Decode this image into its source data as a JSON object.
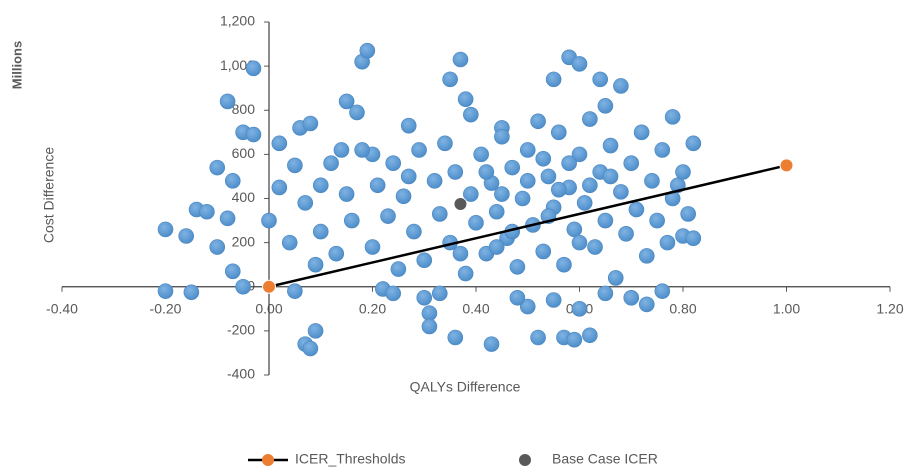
{
  "chart_data": {
    "type": "scatter",
    "xlabel": "QALYs Difference",
    "ylabel": "Cost Difference",
    "yunit": "Millions",
    "xlim": [
      -0.4,
      1.2
    ],
    "xticks": [
      {
        "value": -0.4,
        "label": "-0.40"
      },
      {
        "value": -0.2,
        "label": "-0.20"
      },
      {
        "value": 0,
        "label": "0.00"
      },
      {
        "value": 0.2,
        "label": "0.20"
      },
      {
        "value": 0.4,
        "label": "0.40"
      },
      {
        "value": 0.6,
        "label": "0.60"
      },
      {
        "value": 0.8,
        "label": "0.80"
      },
      {
        "value": 1.0,
        "label": "1.00"
      },
      {
        "value": 1.2,
        "label": "1.20"
      }
    ],
    "ylim": [
      -400,
      1200
    ],
    "yticks": [
      -400,
      -200,
      0,
      200,
      400,
      600,
      800,
      {
        "value": 1000,
        "label": "1,000"
      },
      {
        "value": 1200,
        "label": "1,200"
      }
    ],
    "legend": "bottom",
    "series": [
      {
        "color": "#5b9bd5",
        "x": [
          -0.2,
          -0.15,
          -0.2,
          -0.16,
          -0.14,
          -0.12,
          -0.1,
          -0.1,
          -0.08,
          -0.03,
          -0.05,
          -0.03,
          -0.07,
          -0.08,
          -0.07,
          -0.05,
          0.02,
          0.05,
          0.07,
          0.08,
          0.09,
          0.06,
          0.08,
          0.1,
          0.15,
          0.17,
          0.18,
          0.19,
          0.2,
          0.22,
          0.24,
          0.27,
          0.3,
          0.31,
          0.31,
          0.33,
          0.35,
          0.36,
          0.37,
          0.38,
          0.39,
          0.43,
          0.45,
          0.52,
          0.55,
          0.57,
          0.58,
          0.59,
          0.6,
          0.62,
          0.64,
          0.65,
          0.68,
          0.7,
          0.73,
          0.76,
          0.78,
          0.8,
          0.82,
          0.82,
          0.79,
          0.5,
          0.48,
          0.55,
          0.6,
          0.65,
          0.0,
          0.02,
          0.04,
          0.05,
          0.07,
          0.1,
          0.12,
          0.13,
          0.15,
          0.16,
          0.18,
          0.2,
          0.21,
          0.23,
          0.24,
          0.25,
          0.26,
          0.28,
          0.29,
          0.3,
          0.32,
          0.33,
          0.34,
          0.35,
          0.36,
          0.38,
          0.39,
          0.4,
          0.41,
          0.42,
          0.43,
          0.44,
          0.45,
          0.46,
          0.47,
          0.48,
          0.49,
          0.5,
          0.51,
          0.52,
          0.53,
          0.54,
          0.55,
          0.56,
          0.57,
          0.58,
          0.59,
          0.6,
          0.61,
          0.62,
          0.63,
          0.64,
          0.65,
          0.66,
          0.67,
          0.68,
          0.69,
          0.7,
          0.71,
          0.72,
          0.73,
          0.74,
          0.75,
          0.76,
          0.77,
          0.78,
          0.8,
          0.81,
          0.56,
          0.53,
          0.47,
          0.42,
          0.58,
          0.62,
          0.5,
          0.45,
          0.66,
          0.54,
          0.6,
          0.44,
          0.37,
          0.27,
          0.14,
          0.09
        ],
        "y": [
          -20,
          -25,
          260,
          230,
          350,
          340,
          180,
          540,
          840,
          990,
          700,
          690,
          480,
          310,
          70,
          0,
          650,
          -20,
          -260,
          -280,
          -200,
          720,
          740,
          460,
          840,
          790,
          1020,
          1070,
          600,
          -10,
          -30,
          730,
          -50,
          -120,
          -180,
          -30,
          940,
          -230,
          1030,
          850,
          780,
          -260,
          720,
          -230,
          940,
          -230,
          1040,
          -240,
          1010,
          -220,
          940,
          820,
          910,
          -50,
          -80,
          -20,
          770,
          230,
          650,
          220,
          460,
          -90,
          -50,
          -60,
          -100,
          -30,
          300,
          450,
          200,
          550,
          380,
          250,
          560,
          150,
          420,
          300,
          620,
          180,
          460,
          320,
          560,
          80,
          410,
          250,
          620,
          120,
          480,
          330,
          650,
          200,
          520,
          60,
          420,
          290,
          600,
          150,
          470,
          340,
          680,
          220,
          540,
          90,
          400,
          620,
          280,
          750,
          160,
          500,
          360,
          700,
          100,
          450,
          260,
          600,
          380,
          760,
          180,
          520,
          300,
          640,
          40,
          430,
          240,
          560,
          350,
          700,
          140,
          480,
          300,
          620,
          200,
          400,
          520,
          330,
          440,
          580,
          250,
          520,
          560,
          460,
          480,
          420,
          500,
          320,
          200,
          180,
          150,
          500,
          620,
          100
        ]
      },
      {
        "name": "ICER_Thresholds",
        "color": "#ed7d31",
        "line": true,
        "x": [
          0,
          1.0
        ],
        "y": [
          0,
          550
        ]
      },
      {
        "name": "Base Case ICER",
        "color": "#595959",
        "x": [
          0.37
        ],
        "y": [
          375
        ]
      }
    ]
  }
}
